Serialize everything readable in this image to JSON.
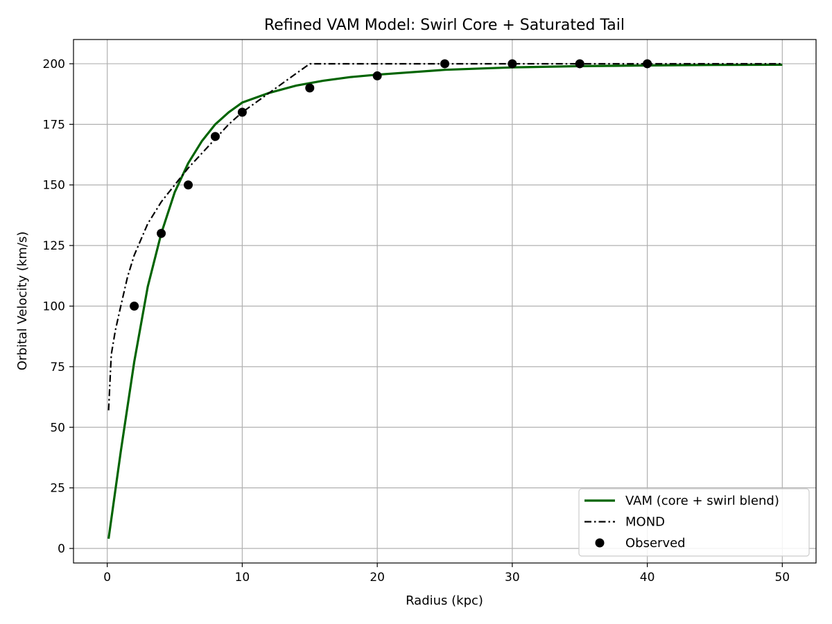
{
  "chart_data": {
    "type": "line",
    "title": "Refined VAM Model: Swirl Core + Saturated Tail",
    "xlabel": "Radius (kpc)",
    "ylabel": "Orbital Velocity (km/s)",
    "xlim": [
      -2.5,
      52.5
    ],
    "ylim": [
      -6,
      210
    ],
    "xticks": [
      0,
      10,
      20,
      30,
      40,
      50
    ],
    "yticks": [
      0,
      25,
      50,
      75,
      100,
      125,
      150,
      175,
      200
    ],
    "grid": true,
    "legend_position": "bottom-right",
    "series": [
      {
        "name": "VAM (core + swirl blend)",
        "kind": "line",
        "style": "solid",
        "color": "#006400",
        "x": [
          0.1,
          1,
          2,
          3,
          4,
          5,
          6,
          7,
          8,
          9,
          10,
          12,
          14,
          16,
          18,
          20,
          25,
          30,
          35,
          40,
          45,
          50
        ],
        "y": [
          4,
          40,
          77,
          108,
          130,
          147,
          159,
          168,
          175,
          180,
          184,
          188,
          191,
          193,
          194.5,
          195.5,
          197.5,
          198.5,
          199,
          199.3,
          199.5,
          199.6
        ]
      },
      {
        "name": "MOND",
        "kind": "line",
        "style": "dashdot",
        "color": "#000000",
        "x": [
          0.1,
          0.3,
          0.6,
          1,
          1.5,
          2,
          3,
          4,
          5,
          6,
          7,
          8,
          9,
          10,
          11,
          12,
          13,
          14,
          15,
          20,
          30,
          40,
          50
        ],
        "y": [
          57,
          80,
          90,
          100,
          112,
          121,
          134,
          143,
          150,
          157,
          163,
          169,
          175,
          180,
          184,
          188,
          192,
          196,
          200,
          200,
          200,
          200,
          200
        ]
      },
      {
        "name": "Observed",
        "kind": "scatter",
        "color": "#000000",
        "x": [
          2,
          4,
          6,
          8,
          10,
          15,
          20,
          25,
          30,
          35,
          40
        ],
        "y": [
          100,
          130,
          150,
          170,
          180,
          190,
          195,
          200,
          200,
          200,
          200
        ]
      }
    ]
  }
}
